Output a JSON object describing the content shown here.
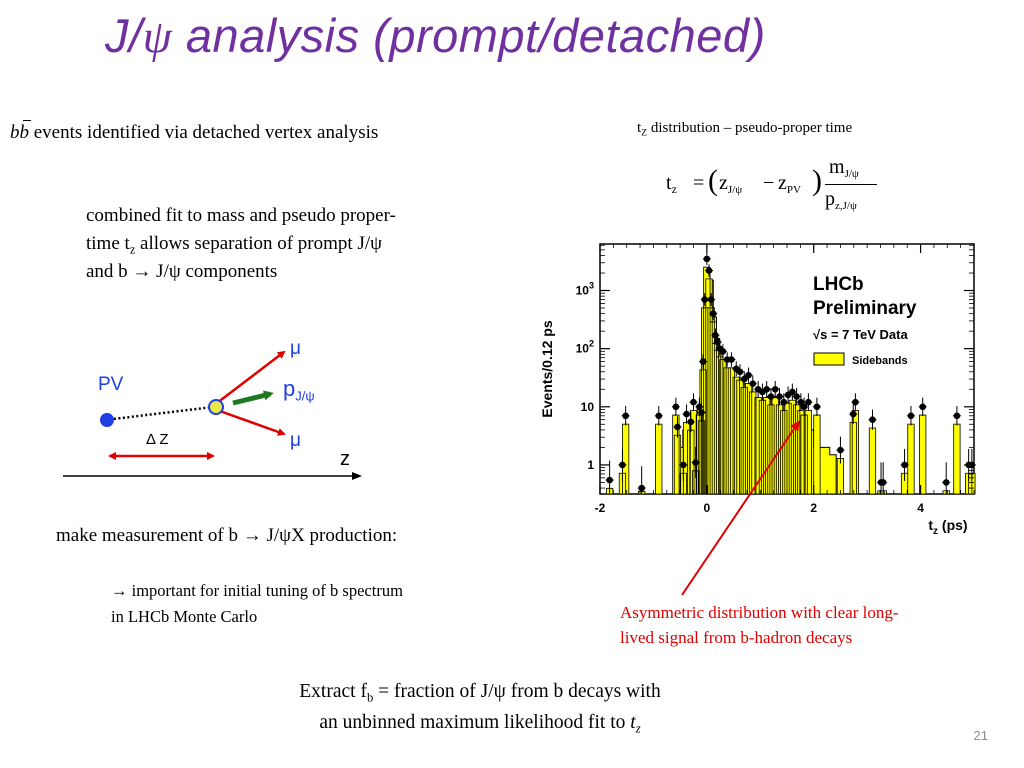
{
  "slide": {
    "title_prefix": "J/",
    "title_symbol": "ψ",
    "title_suffix": " analysis (prompt/detached)",
    "page_number": "21"
  },
  "left": {
    "bb_label": "bb",
    "bb_text": " events identified via detached vertex analysis",
    "combined_fit_line1": "combined fit to mass and pseudo proper-",
    "combined_fit_line2a": "time t",
    "combined_fit_line2_sub": "z",
    "combined_fit_line2b": " allows separation of prompt J/ψ",
    "combined_fit_line3": "and b → J/ψ components",
    "make_measurement": "make measurement of  b → J/ψX production:",
    "tuning_line1": "→  important for initial tuning of  b spectrum",
    "tuning_line2": "in LHCb Monte Carlo"
  },
  "vertex_diagram": {
    "pv_label": "PV",
    "mu_top": "μ",
    "mu_bottom": "μ",
    "p_label": "p",
    "p_sub": "J/ψ",
    "delta_z": "Δ Z",
    "z_axis": "z"
  },
  "right": {
    "tz_header_a": "t",
    "tz_header_sub": "Z",
    "tz_header_b": " distribution – pseudo-proper time",
    "formula": {
      "t": "t",
      "t_sub": "z",
      "eq": "=",
      "z1": "z",
      "z1_sub": "J/ψ",
      "minus": "−",
      "z2": "z",
      "z2_sub": "PV",
      "m": "m",
      "m_sub": "J/ψ",
      "p": "p",
      "p_sub": "z,J/ψ"
    },
    "annotation_line1": "Asymmetric distribution with clear long-",
    "annotation_line2": "lived signal from b-hadron decays"
  },
  "bottom": {
    "extract_a": "Extract f",
    "extract_sub": "b",
    "extract_b": " = fraction of J/ψ from b decays with",
    "extract_line2a": "an unbinned maximum likelihood fit to ",
    "extract_line2_t": "t",
    "extract_line2_sub": "z"
  },
  "chart_data": {
    "type": "scatter",
    "ylabel": "Events/0.12 ps",
    "xlabel_main": "t",
    "xlabel_sub": "z",
    "xlabel_unit": " (ps)",
    "x_ticks": [
      "-2",
      "0",
      "2",
      "4"
    ],
    "y_ticks": [
      "1",
      "10",
      "10",
      "10"
    ],
    "y_tick_exp": [
      "",
      "",
      "2",
      "3"
    ],
    "xlim": [
      -2.0,
      5.0
    ],
    "ylim_log10": [
      -0.5,
      3.8
    ],
    "y_scale": "log",
    "lhcb_line1": "LHCb",
    "lhcb_line2": "Preliminary",
    "energy_label": "√s = 7 TeV Data",
    "legend_sidebands": "Sidebands",
    "series": [
      {
        "name": "Data",
        "x": [
          -1.82,
          -1.58,
          -1.52,
          -1.22,
          -0.9,
          -0.58,
          -0.55,
          -0.44,
          -0.38,
          -0.3,
          -0.25,
          -0.21,
          -0.14,
          -0.1,
          -0.07,
          -0.04,
          0.0,
          0.04,
          0.08,
          0.12,
          0.16,
          0.2,
          0.24,
          0.3,
          0.38,
          0.46,
          0.55,
          0.62,
          0.7,
          0.78,
          0.86,
          0.96,
          1.04,
          1.12,
          1.2,
          1.28,
          1.36,
          1.44,
          1.52,
          1.6,
          1.68,
          1.76,
          1.82,
          1.9,
          2.06,
          2.5,
          2.74,
          2.78,
          3.1,
          3.26,
          3.3,
          3.7,
          3.82,
          4.04,
          4.48,
          4.68,
          4.9,
          4.96
        ],
        "y": [
          0.55,
          1.0,
          7.0,
          0.4,
          7.0,
          10.0,
          4.5,
          1.0,
          7.5,
          5.5,
          12.0,
          1.1,
          10.0,
          8.0,
          60.0,
          700.0,
          3500.0,
          2200.0,
          700.0,
          400.0,
          170.0,
          130.0,
          100.0,
          90.0,
          65.0,
          65.0,
          45.0,
          40.0,
          30.0,
          35.0,
          25.0,
          20.0,
          18.0,
          20.0,
          15.0,
          20.0,
          15.0,
          12.0,
          16.0,
          18.0,
          15.0,
          12.0,
          10.0,
          12.0,
          10.0,
          1.8,
          7.5,
          12.0,
          6.0,
          0.5,
          0.5,
          1.0,
          7.0,
          10.0,
          0.5,
          7.0,
          1.0,
          1.0
        ]
      }
    ]
  }
}
